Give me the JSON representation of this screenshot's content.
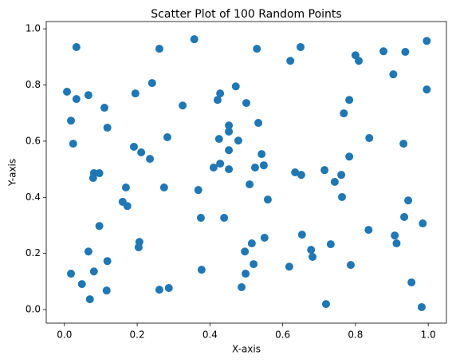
{
  "chart_data": {
    "type": "scatter",
    "title": "Scatter Plot of 100 Random Points",
    "x_label": "X-axis",
    "y_label": "Y-axis",
    "color": "#1f77b4",
    "x": [
      0.007,
      0.018,
      0.033,
      0.033,
      0.024,
      0.018,
      0.048,
      0.066,
      0.066,
      0.07,
      0.081,
      0.079,
      0.081,
      0.096,
      0.096,
      0.11,
      0.118,
      0.118,
      0.116,
      0.16,
      0.169,
      0.173,
      0.195,
      0.191,
      0.211,
      0.206,
      0.204,
      0.235,
      0.241,
      0.261,
      0.261,
      0.274,
      0.283,
      0.287,
      0.325,
      0.357,
      0.368,
      0.375,
      0.377,
      0.41,
      0.421,
      0.428,
      0.425,
      0.428,
      0.439,
      0.452,
      0.452,
      0.452,
      0.452,
      0.471,
      0.478,
      0.487,
      0.5,
      0.496,
      0.498,
      0.509,
      0.515,
      0.52,
      0.524,
      0.529,
      0.533,
      0.542,
      0.548,
      0.55,
      0.559,
      0.621,
      0.618,
      0.634,
      0.649,
      0.651,
      0.653,
      0.678,
      0.682,
      0.715,
      0.719,
      0.732,
      0.743,
      0.761,
      0.763,
      0.768,
      0.783,
      0.783,
      0.787,
      0.8,
      0.809,
      0.836,
      0.838,
      0.877,
      0.904,
      0.908,
      0.913,
      0.937,
      0.932,
      0.934,
      0.945,
      0.954,
      0.982,
      0.985,
      0.996,
      0.996
    ],
    "values": [
      0.776,
      0.673,
      0.935,
      0.75,
      0.591,
      0.128,
      0.091,
      0.764,
      0.207,
      0.037,
      0.486,
      0.469,
      0.136,
      0.486,
      0.298,
      0.719,
      0.648,
      0.173,
      0.068,
      0.384,
      0.435,
      0.369,
      0.77,
      0.58,
      0.56,
      0.241,
      0.222,
      0.537,
      0.807,
      0.929,
      0.071,
      0.435,
      0.614,
      0.077,
      0.727,
      0.963,
      0.426,
      0.327,
      0.142,
      0.506,
      0.747,
      0.77,
      0.608,
      0.52,
      0.327,
      0.656,
      0.634,
      0.568,
      0.5,
      0.795,
      0.602,
      0.08,
      0.736,
      0.207,
      0.128,
      0.446,
      0.236,
      0.162,
      0.506,
      0.929,
      0.665,
      0.554,
      0.514,
      0.256,
      0.392,
      0.886,
      0.153,
      0.489,
      0.935,
      0.48,
      0.267,
      0.213,
      0.188,
      0.497,
      0.02,
      0.233,
      0.455,
      0.48,
      0.401,
      0.699,
      0.747,
      0.545,
      0.159,
      0.906,
      0.886,
      0.284,
      0.611,
      0.92,
      0.838,
      0.264,
      0.236,
      0.918,
      0.591,
      0.33,
      0.389,
      0.097,
      0.009,
      0.307,
      0.957,
      0.784
    ],
    "xlim": [
      -0.05,
      1.05
    ],
    "ylim": [
      -0.048,
      1.026
    ],
    "xticks": [
      {
        "value": 0,
        "label": "0.0"
      },
      {
        "value": 0.2,
        "label": "0.2"
      },
      {
        "value": 0.4,
        "label": "0.4"
      },
      {
        "value": 0.6,
        "label": "0.6"
      },
      {
        "value": 0.8,
        "label": "0.8"
      },
      {
        "value": 1,
        "label": "1.0"
      }
    ],
    "yticks": [
      {
        "value": 0,
        "label": "0.0"
      },
      {
        "value": 0.2,
        "label": "0.2"
      },
      {
        "value": 0.4,
        "label": "0.4"
      },
      {
        "value": 0.6,
        "label": "0.6"
      },
      {
        "value": 0.8,
        "label": "0.8"
      },
      {
        "value": 1,
        "label": "1.0"
      }
    ],
    "grid": false
  }
}
